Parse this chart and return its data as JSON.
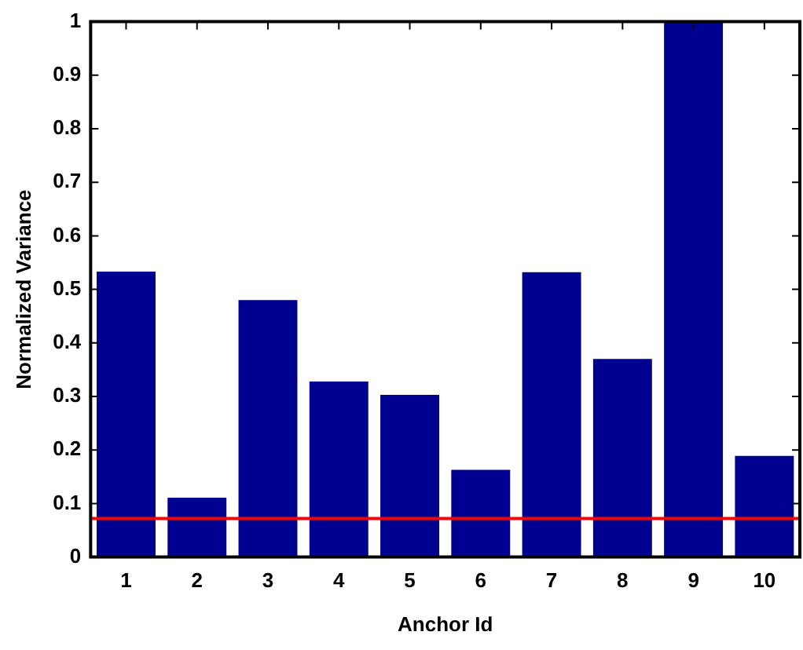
{
  "chart_data": {
    "type": "bar",
    "xlabel": "Anchor Id",
    "ylabel": "Normalized Variance",
    "categories": [
      "1",
      "2",
      "3",
      "4",
      "5",
      "6",
      "7",
      "8",
      "9",
      "10"
    ],
    "values": [
      0.533,
      0.111,
      0.48,
      0.328,
      0.303,
      0.163,
      0.532,
      0.37,
      1,
      0.189
    ],
    "color": "#000090",
    "ylim": [
      0,
      1
    ],
    "yticks": [
      0,
      0.1,
      0.2,
      0.3,
      0.4,
      0.5,
      0.6,
      0.7,
      0.8,
      0.9,
      1
    ],
    "ref_lines": [
      {
        "axis": "y",
        "value": 0.072,
        "color": "#ff0000"
      }
    ],
    "grid": false,
    "legend": false
  }
}
